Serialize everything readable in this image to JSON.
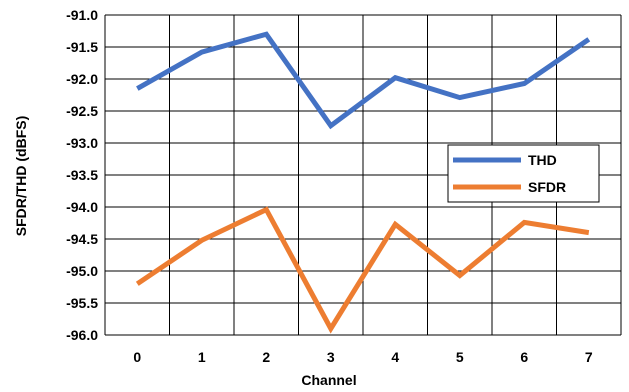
{
  "chart_data": {
    "type": "line",
    "title": "",
    "xlabel": "Channel",
    "ylabel": "SFDR/THD (dBFS)",
    "categories": [
      "0",
      "1",
      "2",
      "3",
      "4",
      "5",
      "6",
      "7"
    ],
    "ylim": [
      -96.0,
      -91.0
    ],
    "yticks": [
      "-91.0",
      "-91.5",
      "-92.0",
      "-92.5",
      "-93.0",
      "-93.5",
      "-94.0",
      "-94.5",
      "-95.0",
      "-95.5",
      "-96.0"
    ],
    "grid": true,
    "legend_position": "right",
    "series": [
      {
        "name": "THD",
        "color": "#4472C4",
        "values": [
          -92.15,
          -91.58,
          -91.3,
          -92.73,
          -91.98,
          -92.29,
          -92.07,
          -91.38
        ]
      },
      {
        "name": "SFDR",
        "color": "#ED7D31",
        "values": [
          -95.2,
          -94.52,
          -94.04,
          -95.9,
          -94.27,
          -95.07,
          -94.24,
          -94.4
        ]
      }
    ]
  }
}
